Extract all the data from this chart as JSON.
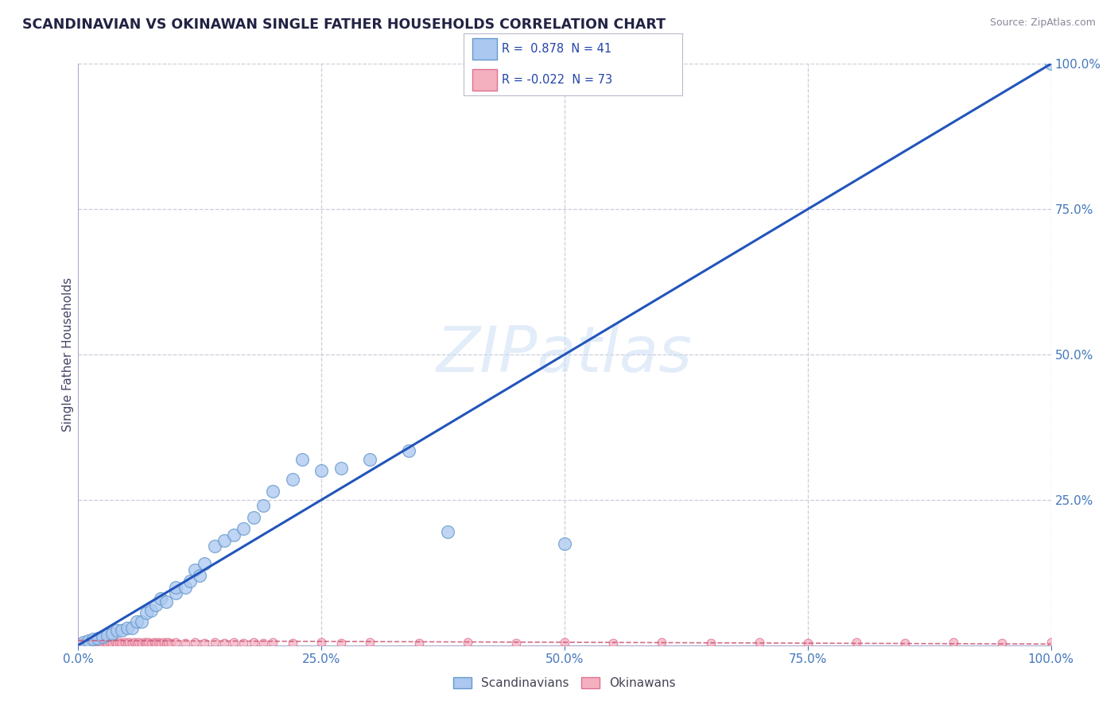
{
  "title": "SCANDINAVIAN VS OKINAWAN SINGLE FATHER HOUSEHOLDS CORRELATION CHART",
  "source": "Source: ZipAtlas.com",
  "ylabel": "Single Father Households",
  "watermark": "ZIPatlas",
  "scandinavian_R": 0.878,
  "scandinavian_N": 41,
  "okinawan_R": -0.022,
  "okinawan_N": 73,
  "scandinavian_color": "#aac8f0",
  "scandinavian_edge_color": "#6699cc",
  "scandinavian_line_color": "#2255bb",
  "okinawan_color": "#f5b0c0",
  "okinawan_edge_color": "#dd7090",
  "okinawan_line_color": "#cc5577",
  "title_color": "#222244",
  "tick_color": "#4477bb",
  "grid_color": "#ccccdd",
  "background_color": "#ffffff",
  "scandinavian_x": [
    0.005,
    0.01,
    0.015,
    0.02,
    0.025,
    0.03,
    0.035,
    0.04,
    0.045,
    0.05,
    0.055,
    0.06,
    0.065,
    0.07,
    0.075,
    0.08,
    0.085,
    0.09,
    0.1,
    0.1,
    0.11,
    0.115,
    0.12,
    0.125,
    0.13,
    0.14,
    0.15,
    0.16,
    0.17,
    0.18,
    0.19,
    0.2,
    0.22,
    0.23,
    0.25,
    0.27,
    0.3,
    0.34,
    0.38,
    0.5,
    1.0
  ],
  "scandinavian_y": [
    0.005,
    0.008,
    0.01,
    0.012,
    0.015,
    0.018,
    0.02,
    0.025,
    0.025,
    0.03,
    0.03,
    0.04,
    0.04,
    0.055,
    0.06,
    0.07,
    0.08,
    0.075,
    0.09,
    0.1,
    0.1,
    0.11,
    0.13,
    0.12,
    0.14,
    0.17,
    0.18,
    0.19,
    0.2,
    0.22,
    0.24,
    0.265,
    0.285,
    0.32,
    0.3,
    0.305,
    0.32,
    0.335,
    0.195,
    0.175,
    1.0
  ],
  "okinawan_x": [
    0.0,
    0.002,
    0.004,
    0.006,
    0.008,
    0.01,
    0.012,
    0.014,
    0.016,
    0.018,
    0.02,
    0.022,
    0.025,
    0.028,
    0.03,
    0.032,
    0.035,
    0.038,
    0.04,
    0.042,
    0.045,
    0.048,
    0.05,
    0.052,
    0.055,
    0.058,
    0.06,
    0.062,
    0.065,
    0.068,
    0.07,
    0.072,
    0.075,
    0.078,
    0.08,
    0.082,
    0.085,
    0.088,
    0.09,
    0.092,
    0.095,
    0.1,
    0.11,
    0.12,
    0.13,
    0.14,
    0.15,
    0.16,
    0.17,
    0.18,
    0.19,
    0.2,
    0.22,
    0.25,
    0.27,
    0.3,
    0.35,
    0.4,
    0.45,
    0.5,
    0.55,
    0.6,
    0.65,
    0.7,
    0.75,
    0.8,
    0.85,
    0.9,
    0.95,
    1.0,
    0.005,
    0.01,
    0.015
  ],
  "okinawan_y": [
    0.005,
    0.003,
    0.004,
    0.005,
    0.003,
    0.004,
    0.005,
    0.003,
    0.004,
    0.005,
    0.004,
    0.005,
    0.004,
    0.005,
    0.004,
    0.005,
    0.004,
    0.005,
    0.004,
    0.005,
    0.004,
    0.005,
    0.004,
    0.005,
    0.004,
    0.005,
    0.004,
    0.005,
    0.004,
    0.005,
    0.004,
    0.005,
    0.004,
    0.005,
    0.004,
    0.005,
    0.004,
    0.005,
    0.004,
    0.005,
    0.004,
    0.005,
    0.004,
    0.005,
    0.004,
    0.005,
    0.004,
    0.005,
    0.004,
    0.005,
    0.004,
    0.005,
    0.004,
    0.005,
    0.004,
    0.005,
    0.004,
    0.005,
    0.004,
    0.005,
    0.004,
    0.005,
    0.004,
    0.005,
    0.004,
    0.005,
    0.004,
    0.005,
    0.004,
    0.005,
    0.004,
    0.005,
    0.004
  ],
  "xlim": [
    0.0,
    1.0
  ],
  "ylim": [
    0.0,
    1.0
  ],
  "xticks": [
    0.0,
    0.25,
    0.5,
    0.75,
    1.0
  ],
  "yticks": [
    0.25,
    0.5,
    0.75,
    1.0
  ],
  "xticklabels": [
    "0.0%",
    "25.0%",
    "50.0%",
    "75.0%",
    "100.0%"
  ],
  "yticklabels": [
    "25.0%",
    "50.0%",
    "75.0%",
    "100.0%"
  ],
  "scan_line_x0": 0.0,
  "scan_line_y0": 0.0,
  "scan_line_x1": 1.0,
  "scan_line_y1": 1.0,
  "oki_line_x0": 0.0,
  "oki_line_y0": 0.008,
  "oki_line_x1": 1.0,
  "oki_line_y1": 0.002
}
